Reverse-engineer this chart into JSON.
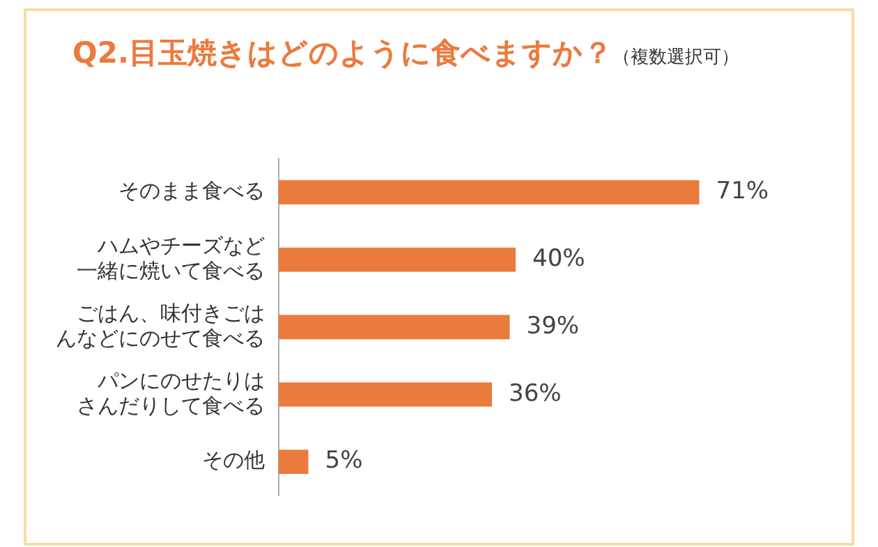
{
  "chart_data": {
    "type": "bar",
    "orientation": "horizontal",
    "title": "Q2.目玉焼きはどのように食べますか？",
    "subtitle": "（複数選択可）",
    "categories": [
      "そのまま食べる",
      "ハムやチーズなど一緒に焼いて食べる",
      "ごはん、味付きごはんなどにのせて食べる",
      "パンにのせたりはさんだりして食べる",
      "その他"
    ],
    "values": [
      71,
      40,
      39,
      36,
      5
    ],
    "value_labels": [
      "71%",
      "40%",
      "39%",
      "36%",
      "5%"
    ],
    "color": "#eb7a3d",
    "grid": false,
    "legend": false,
    "tick_labels": "y"
  }
}
